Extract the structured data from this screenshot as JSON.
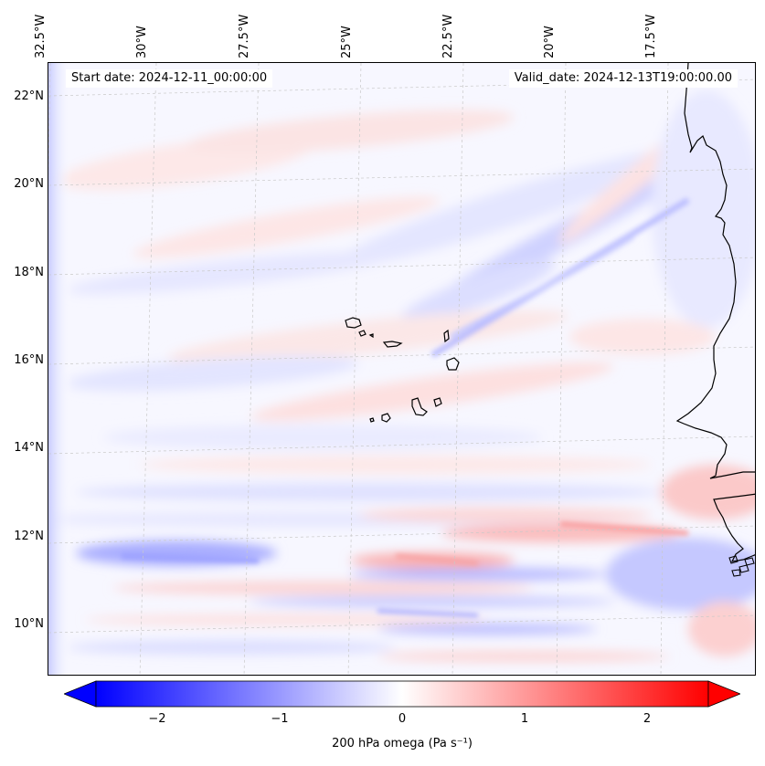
{
  "map": {
    "start_date_text": "Start date: 2024-12-11_00:00:00",
    "valid_date_text": "Valid_date: 2024-12-13T19:00:00.00",
    "lon_labels": [
      "32.5°W",
      "30°W",
      "27.5°W",
      "25°W",
      "22.5°W",
      "20°W",
      "17.5°W"
    ],
    "lat_labels": [
      "22°N",
      "20°N",
      "18°N",
      "16°N",
      "14°N",
      "12°N",
      "10°N"
    ],
    "variable": "200 hPa omega",
    "units": "Pa s⁻¹",
    "colormap": "bwr",
    "colorbar_ticks": [
      "−2",
      "−1",
      "0",
      "1",
      "2"
    ],
    "colorbar_range": [
      -2.7,
      2.7
    ],
    "colors": {
      "negative": "#0000ff",
      "zero": "#ffffff",
      "positive": "#ff0000",
      "coast": "#000000"
    }
  }
}
